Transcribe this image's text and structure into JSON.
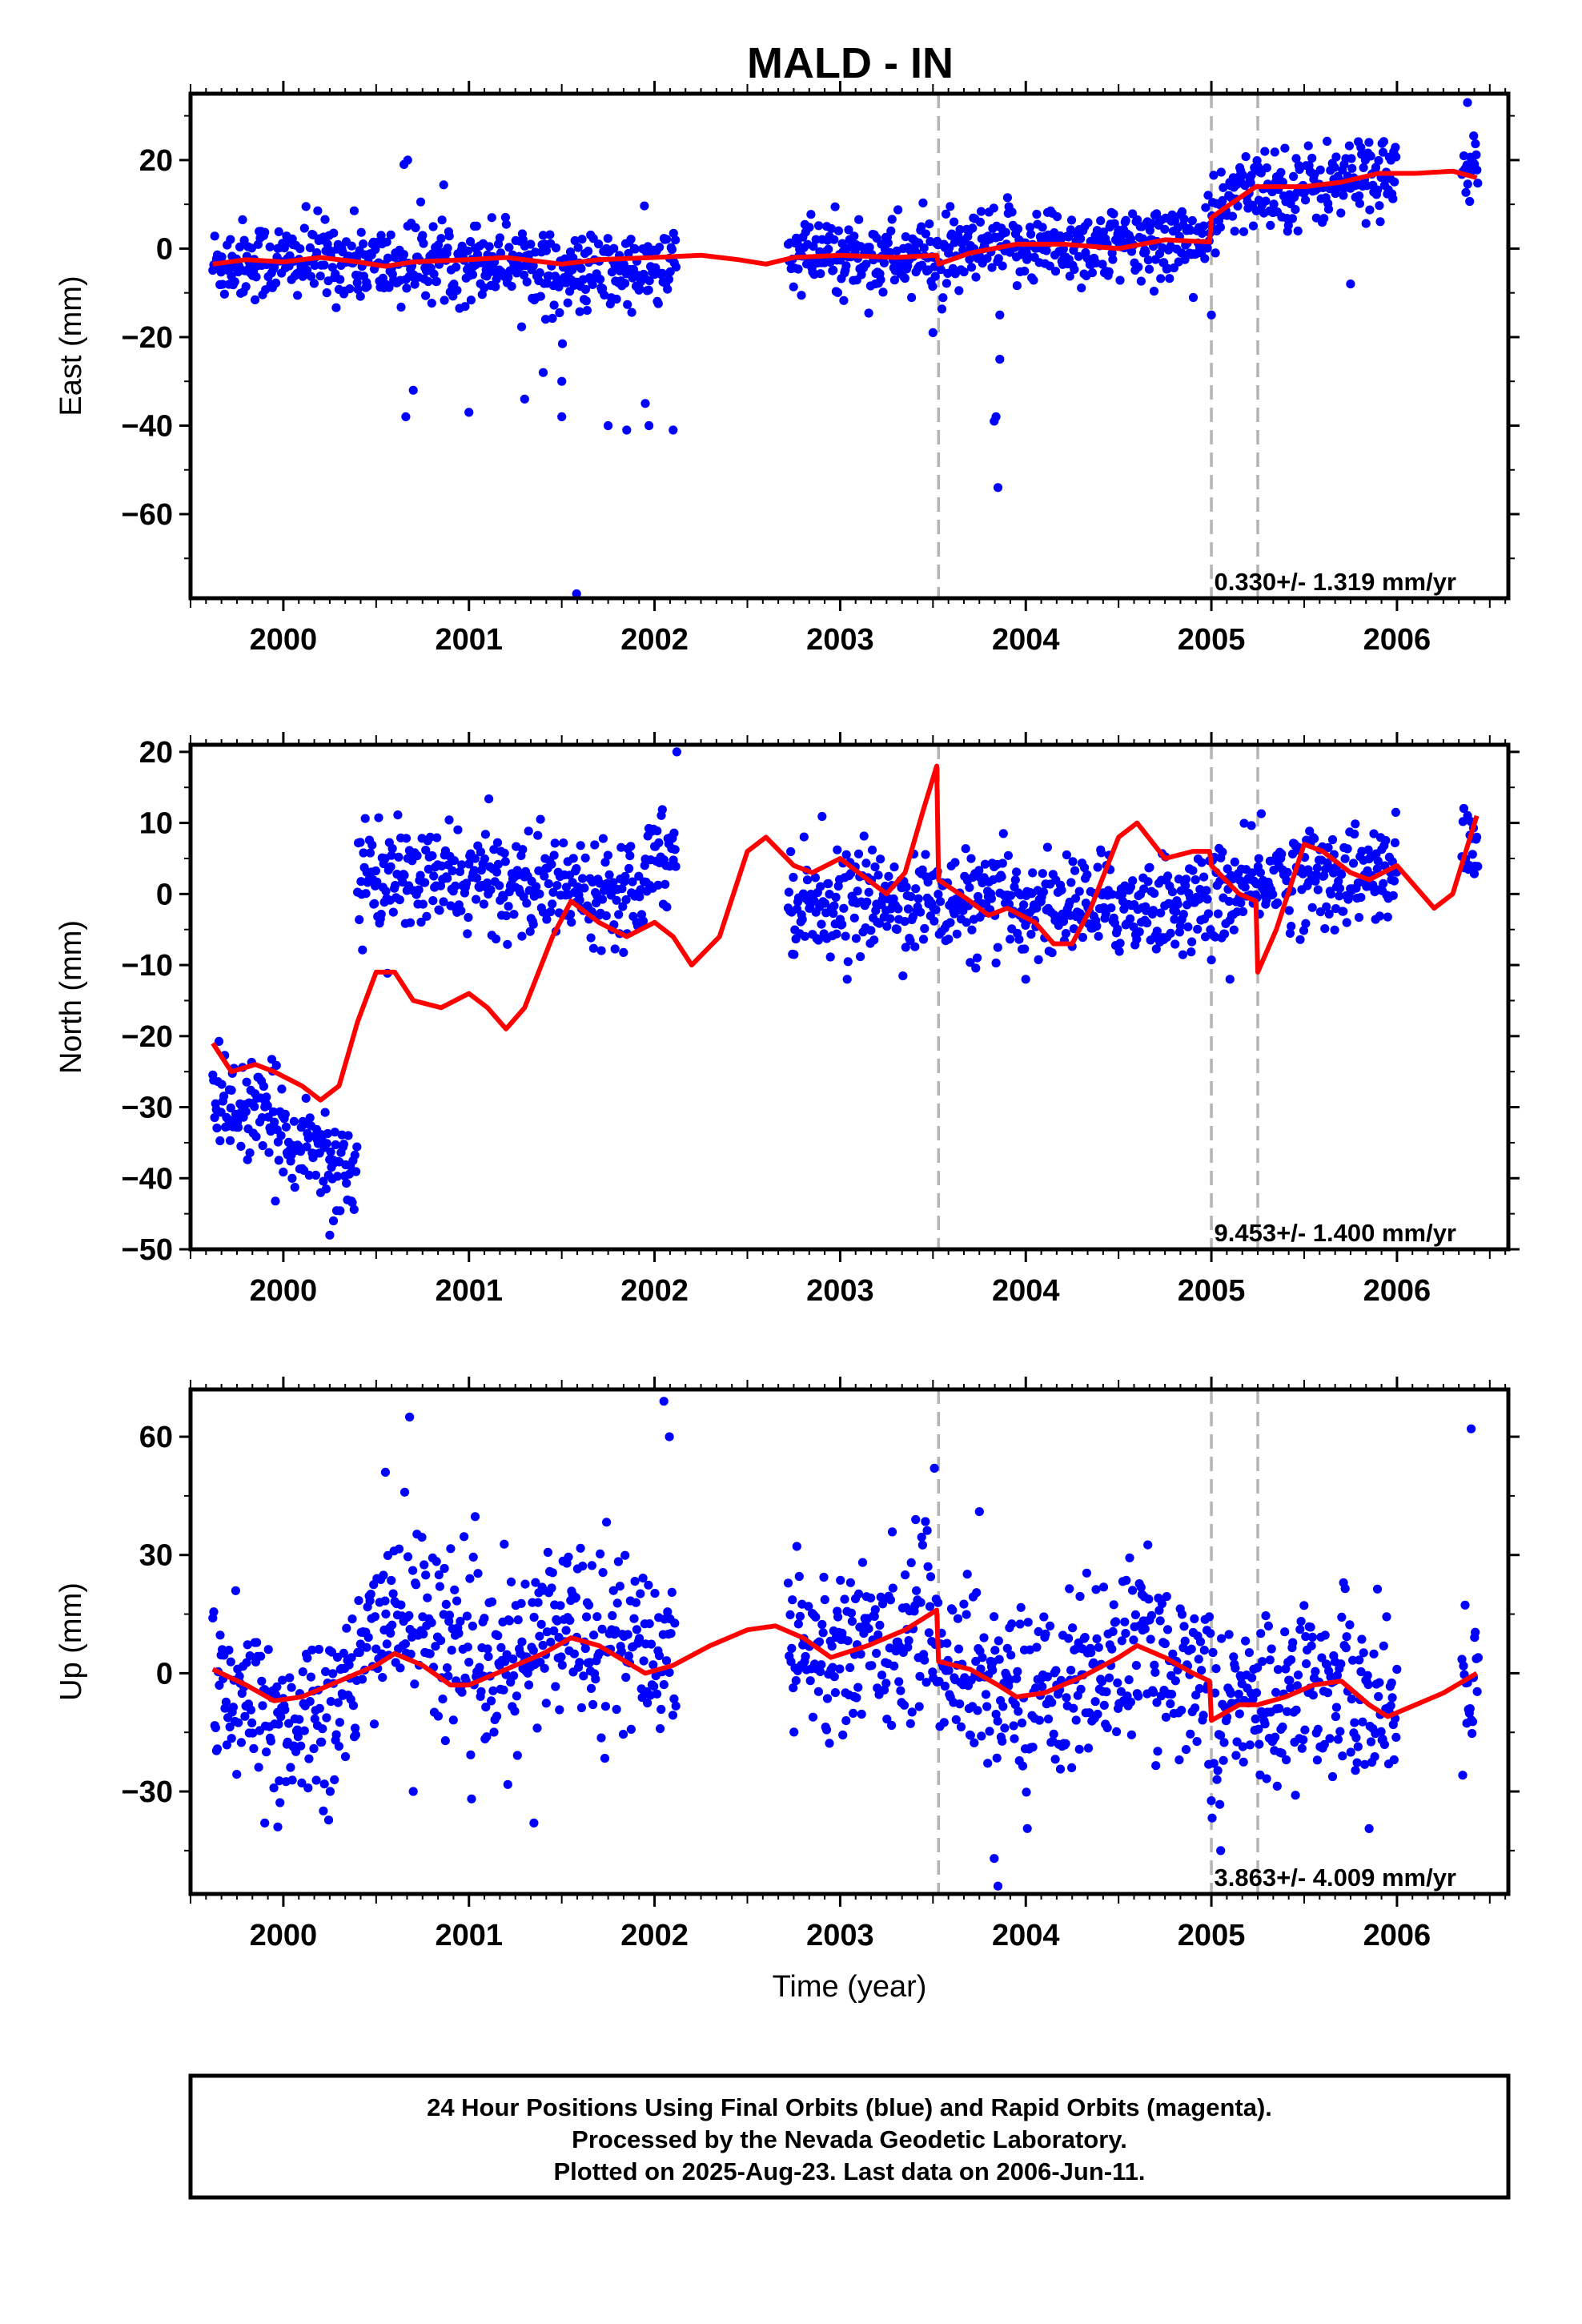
{
  "title": "MALD - IN",
  "xlabel": "Time (year)",
  "caption": [
    "24 Hour Positions Using Final Orbits (blue) and Rapid Orbits (magenta).",
    "Processed by the Nevada Geodetic Laboratory.",
    "Plotted on 2025-Aug-23. Last data on 2006-Jun-11."
  ],
  "colors": {
    "points": "#0000ff",
    "model": "#ff0000",
    "events": "#b4b4b4",
    "frame": "#000000"
  },
  "chart_data": [
    {
      "type": "scatter",
      "component": "east",
      "ylabel": "East (mm)",
      "xlim": [
        1999.5,
        2006.6
      ],
      "ylim": [
        -79,
        35
      ],
      "yticks": [
        20,
        0,
        -20,
        -40,
        -60
      ],
      "xticks": [
        2000,
        2001,
        2002,
        2003,
        2004,
        2005,
        2006
      ],
      "rate_label": "0.330+/- 1.319 mm/yr",
      "event_lines": [
        2003.53,
        2005.0,
        2005.25
      ],
      "data_ranges": [
        [
          1999.62,
          2002.12
        ],
        [
          2002.72,
          2006.0
        ],
        [
          2006.35,
          2006.44
        ]
      ],
      "model_line": [
        [
          1999.62,
          -3.5
        ],
        [
          1999.8,
          -2.5
        ],
        [
          2000.0,
          -3
        ],
        [
          2000.2,
          -2
        ],
        [
          2000.4,
          -3
        ],
        [
          2000.55,
          -4
        ],
        [
          2000.7,
          -3
        ],
        [
          2001.0,
          -2.5
        ],
        [
          2001.2,
          -2
        ],
        [
          2001.5,
          -3.5
        ],
        [
          2001.7,
          -2.5
        ],
        [
          2002.0,
          -2
        ],
        [
          2002.25,
          -1.5
        ],
        [
          2002.45,
          -2.5
        ],
        [
          2002.6,
          -3.5
        ],
        [
          2002.75,
          -2
        ],
        [
          2003.0,
          -1.5
        ],
        [
          2003.3,
          -2
        ],
        [
          2003.52,
          -1.5
        ],
        [
          2003.53,
          -3.5
        ],
        [
          2003.7,
          -1
        ],
        [
          2003.95,
          1
        ],
        [
          2004.2,
          1
        ],
        [
          2004.5,
          0
        ],
        [
          2004.75,
          2
        ],
        [
          2004.99,
          1.5
        ],
        [
          2005.0,
          7
        ],
        [
          2005.1,
          10
        ],
        [
          2005.24,
          14
        ],
        [
          2005.25,
          14
        ],
        [
          2005.5,
          14
        ],
        [
          2005.7,
          15
        ],
        [
          2005.9,
          17
        ],
        [
          2006.1,
          17
        ],
        [
          2006.3,
          17.5
        ],
        [
          2006.43,
          16
        ]
      ],
      "outliers": [
        [
          2000.65,
          19
        ],
        [
          2000.67,
          20
        ],
        [
          2000.66,
          -38
        ],
        [
          2000.7,
          -32
        ],
        [
          2001.0,
          -37
        ],
        [
          2001.3,
          -34
        ],
        [
          2001.4,
          -28
        ],
        [
          2001.5,
          -30
        ],
        [
          2001.5,
          -38
        ],
        [
          2001.58,
          -78
        ],
        [
          2001.75,
          -40
        ],
        [
          2001.85,
          -41
        ],
        [
          2001.95,
          -35
        ],
        [
          2001.97,
          -40
        ],
        [
          2002.1,
          -41
        ],
        [
          2003.5,
          -19
        ],
        [
          2003.83,
          -39
        ],
        [
          2003.84,
          -38
        ],
        [
          2003.85,
          -54
        ],
        [
          2003.86,
          -25
        ],
        [
          2003.86,
          -15
        ],
        [
          2005.0,
          -15
        ],
        [
          2005.75,
          -8
        ],
        [
          2006.38,
          33
        ]
      ]
    },
    {
      "type": "scatter",
      "component": "north",
      "ylabel": "North (mm)",
      "xlim": [
        1999.5,
        2006.6
      ],
      "ylim": [
        -50,
        21
      ],
      "yticks": [
        20,
        10,
        0,
        -10,
        -20,
        -30,
        -40,
        -50
      ],
      "xticks": [
        2000,
        2001,
        2002,
        2003,
        2004,
        2005,
        2006
      ],
      "rate_label": "9.453+/- 1.400 mm/yr",
      "event_lines": [
        2003.53,
        2005.0,
        2005.25
      ],
      "data_ranges": [
        [
          1999.62,
          2000.4
        ],
        [
          2000.4,
          2002.12
        ],
        [
          2002.72,
          2006.0
        ],
        [
          2006.35,
          2006.44
        ]
      ],
      "model_line": [
        [
          1999.62,
          -21
        ],
        [
          1999.72,
          -25
        ],
        [
          1999.85,
          -24
        ],
        [
          1999.95,
          -25
        ],
        [
          2000.1,
          -27
        ],
        [
          2000.2,
          -29
        ],
        [
          2000.3,
          -27
        ],
        [
          2000.4,
          -18
        ],
        [
          2000.5,
          -11
        ],
        [
          2000.6,
          -11
        ],
        [
          2000.7,
          -15
        ],
        [
          2000.85,
          -16
        ],
        [
          2001.0,
          -14
        ],
        [
          2001.1,
          -16
        ],
        [
          2001.2,
          -19
        ],
        [
          2001.3,
          -16
        ],
        [
          2001.45,
          -6
        ],
        [
          2001.55,
          -1
        ],
        [
          2001.7,
          -4
        ],
        [
          2001.85,
          -6
        ],
        [
          2002.0,
          -4
        ],
        [
          2002.1,
          -6
        ],
        [
          2002.2,
          -10
        ],
        [
          2002.35,
          -6
        ],
        [
          2002.5,
          6
        ],
        [
          2002.6,
          8
        ],
        [
          2002.75,
          4
        ],
        [
          2002.85,
          3
        ],
        [
          2003.0,
          5
        ],
        [
          2003.15,
          2
        ],
        [
          2003.25,
          0
        ],
        [
          2003.35,
          3
        ],
        [
          2003.45,
          12
        ],
        [
          2003.52,
          18
        ],
        [
          2003.53,
          2
        ],
        [
          2003.7,
          -1
        ],
        [
          2003.8,
          -3
        ],
        [
          2003.9,
          -2
        ],
        [
          2004.05,
          -4
        ],
        [
          2004.15,
          -7
        ],
        [
          2004.25,
          -7
        ],
        [
          2004.35,
          -2
        ],
        [
          2004.5,
          8
        ],
        [
          2004.6,
          10
        ],
        [
          2004.75,
          5
        ],
        [
          2004.9,
          6
        ],
        [
          2004.99,
          6
        ],
        [
          2005.0,
          4
        ],
        [
          2005.15,
          0
        ],
        [
          2005.24,
          -1
        ],
        [
          2005.25,
          -11
        ],
        [
          2005.35,
          -5
        ],
        [
          2005.5,
          7
        ],
        [
          2005.6,
          6
        ],
        [
          2005.75,
          3
        ],
        [
          2005.85,
          2
        ],
        [
          2006.0,
          4
        ],
        [
          2006.1,
          1
        ],
        [
          2006.2,
          -2
        ],
        [
          2006.3,
          0
        ],
        [
          2006.43,
          11
        ]
      ],
      "outliers": [
        [
          2000.25,
          -48
        ],
        [
          2000.27,
          -46
        ],
        [
          2002.12,
          20
        ],
        [
          2005.1,
          -12
        ],
        [
          2004.0,
          -12
        ]
      ]
    },
    {
      "type": "scatter",
      "component": "up",
      "ylabel": "Up (mm)",
      "xlim": [
        1999.5,
        2006.6
      ],
      "ylim": [
        -56,
        72
      ],
      "yticks": [
        60,
        30,
        0,
        -30
      ],
      "xticks": [
        2000,
        2001,
        2002,
        2003,
        2004,
        2005,
        2006
      ],
      "rate_label": "3.863+/- 4.009 mm/yr",
      "event_lines": [
        2003.53,
        2005.0,
        2005.25
      ],
      "data_ranges": [
        [
          1999.62,
          2002.12
        ],
        [
          2002.72,
          2006.0
        ],
        [
          2006.35,
          2006.44
        ]
      ],
      "model_line": [
        [
          1999.62,
          1
        ],
        [
          1999.8,
          -3
        ],
        [
          1999.95,
          -7
        ],
        [
          2000.1,
          -6
        ],
        [
          2000.3,
          -2
        ],
        [
          2000.5,
          2
        ],
        [
          2000.6,
          5
        ],
        [
          2000.75,
          2
        ],
        [
          2000.9,
          -3
        ],
        [
          2001.0,
          -3
        ],
        [
          2001.2,
          1
        ],
        [
          2001.4,
          5
        ],
        [
          2001.55,
          9
        ],
        [
          2001.7,
          7
        ],
        [
          2001.95,
          0
        ],
        [
          2002.1,
          2
        ],
        [
          2002.3,
          7
        ],
        [
          2002.5,
          11
        ],
        [
          2002.65,
          12
        ],
        [
          2002.8,
          9
        ],
        [
          2002.95,
          4
        ],
        [
          2003.15,
          7
        ],
        [
          2003.35,
          11
        ],
        [
          2003.52,
          16
        ],
        [
          2003.53,
          3
        ],
        [
          2003.7,
          1
        ],
        [
          2003.85,
          -3
        ],
        [
          2003.95,
          -6
        ],
        [
          2004.1,
          -5
        ],
        [
          2004.3,
          -1
        ],
        [
          2004.5,
          4
        ],
        [
          2004.6,
          7
        ],
        [
          2004.75,
          4
        ],
        [
          2004.9,
          0
        ],
        [
          2004.99,
          -2
        ],
        [
          2005.0,
          -12
        ],
        [
          2005.15,
          -8
        ],
        [
          2005.25,
          -8
        ],
        [
          2005.4,
          -6
        ],
        [
          2005.55,
          -3
        ],
        [
          2005.7,
          -2
        ],
        [
          2005.85,
          -8
        ],
        [
          2005.95,
          -11
        ],
        [
          2006.1,
          -8
        ],
        [
          2006.25,
          -5
        ],
        [
          2006.43,
          0
        ]
      ],
      "outliers": [
        [
          2000.68,
          65
        ],
        [
          2000.55,
          51
        ],
        [
          2000.7,
          -30
        ],
        [
          2001.35,
          -38
        ],
        [
          2002.05,
          69
        ],
        [
          2002.08,
          60
        ],
        [
          2003.85,
          -54
        ],
        [
          2003.83,
          -47
        ],
        [
          2003.75,
          41
        ],
        [
          2006.4,
          62
        ],
        [
          2005.05,
          -45
        ],
        [
          1999.9,
          -38
        ],
        [
          1999.97,
          -39
        ]
      ]
    }
  ]
}
